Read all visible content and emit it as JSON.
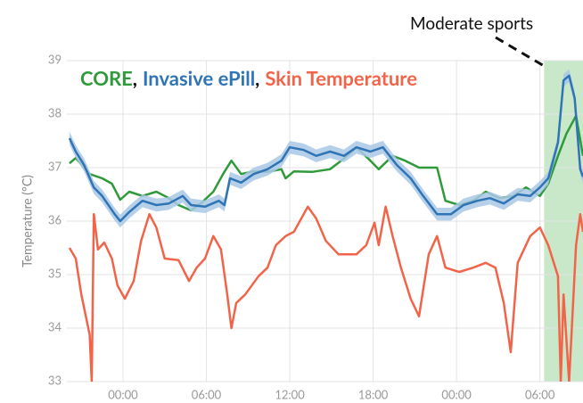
{
  "chart_data": {
    "type": "line",
    "ylabel": "Temperature (°C)",
    "legend_separator": ",",
    "xlim": [
      -4.04,
      33.1
    ],
    "ylim": [
      33,
      39
    ],
    "yticks": [
      33,
      34,
      35,
      36,
      37,
      38,
      39
    ],
    "xticks": [
      {
        "value": 0,
        "label": "00:00"
      },
      {
        "value": 6,
        "label": "06:00"
      },
      {
        "value": 12,
        "label": "12:00"
      },
      {
        "value": 18,
        "label": "18:00"
      },
      {
        "value": 24,
        "label": "00:00"
      },
      {
        "value": 30,
        "label": "06:00"
      }
    ],
    "grid": true,
    "shaded_region": {
      "x": [
        30.3,
        33.1
      ],
      "color": "#c9e8c9",
      "label": "Moderate sports"
    },
    "series": [
      {
        "name": "CORE",
        "color": "#2e9a3a",
        "x": [
          -3.85,
          -3.4,
          -2.4,
          -1.5,
          -0.8,
          -0.2,
          0.45,
          1.4,
          2.4,
          3.3,
          4,
          4.9,
          5.6,
          6.5,
          7.2,
          7.8,
          8.5,
          9.4,
          10.4,
          11.4,
          11.7,
          12.3,
          13.6,
          14.9,
          15.9,
          16.8,
          17.8,
          18.4,
          19.4,
          20.3,
          21.3,
          22.6,
          23.2,
          24.2,
          25.2,
          26.1,
          27.1,
          28.1,
          29,
          30,
          30.6,
          31.3,
          31.9,
          32.6,
          33.1
        ],
        "values": [
          37.08,
          37.18,
          36.88,
          36.8,
          36.7,
          36.4,
          36.55,
          36.47,
          36.55,
          36.43,
          36.3,
          36.2,
          36.33,
          36.55,
          36.88,
          37.13,
          36.88,
          36.93,
          36.92,
          36.97,
          36.8,
          36.93,
          36.92,
          36.97,
          37.17,
          37.38,
          37.13,
          36.97,
          37.22,
          37.13,
          37,
          37,
          36.38,
          36.3,
          36.38,
          36.55,
          36.43,
          36.47,
          36.63,
          36.47,
          36.7,
          37.22,
          37.63,
          37.97,
          37.22
        ]
      },
      {
        "name": "Invasive ePill",
        "color": "#2f74b5",
        "band_color": "#a9c8e6",
        "uncertainty": 0.12,
        "x": [
          -3.85,
          -3.4,
          -2.8,
          -2.1,
          -1.5,
          -0.6,
          -0.2,
          0.45,
          1.4,
          2.4,
          3.3,
          4.3,
          4.9,
          5.9,
          6.9,
          7.3,
          7.7,
          8.5,
          9.4,
          10.4,
          11.4,
          12,
          13,
          13.9,
          14.9,
          15.9,
          16.8,
          17.8,
          18.7,
          19.7,
          20.7,
          21.6,
          22.6,
          23.6,
          24.5,
          25.5,
          26.4,
          27.4,
          28.4,
          29.3,
          30,
          30.6,
          31.3,
          31.7,
          32.1,
          32.5,
          32.9,
          33.1
        ],
        "values": [
          37.55,
          37.3,
          37.05,
          36.63,
          36.47,
          36.13,
          36,
          36.17,
          36.38,
          36.3,
          36.33,
          36.47,
          36.3,
          36.27,
          36.38,
          36.3,
          36.8,
          36.72,
          36.88,
          36.97,
          37.13,
          37.38,
          37.33,
          37.22,
          37.3,
          37.22,
          37.38,
          37.3,
          37.38,
          37.05,
          36.8,
          36.47,
          36.13,
          36.13,
          36.3,
          36.38,
          36.43,
          36.33,
          36.5,
          36.47,
          36.63,
          36.8,
          37.47,
          38.63,
          38.72,
          38.3,
          36.97,
          36.83
        ]
      },
      {
        "name": "Skin Temperature",
        "color": "#f26449",
        "x": [
          -3.85,
          -3.4,
          -3,
          -2.4,
          -2.25,
          -2.1,
          -1.8,
          -1.35,
          -0.8,
          -0.4,
          0.13,
          0.77,
          1.3,
          1.9,
          2.4,
          3,
          4,
          4.75,
          5.3,
          5.9,
          6.5,
          7.05,
          7.5,
          7.8,
          8.15,
          8.8,
          9.75,
          10.4,
          11,
          11.7,
          12.3,
          13.3,
          13.9,
          14.6,
          15.5,
          16.8,
          17.5,
          18.1,
          18.4,
          18.9,
          19.4,
          20,
          20.7,
          21.3,
          22,
          22.6,
          23.2,
          24.2,
          25.2,
          26.1,
          26.8,
          27.4,
          27.9,
          28.4,
          29.3,
          30,
          30.6,
          31.3,
          31.5,
          31.7,
          32.1,
          32.6,
          32.9,
          33.1
        ],
        "values": [
          35.5,
          35.3,
          34.63,
          33.88,
          33,
          36.13,
          35.47,
          35.6,
          35.3,
          34.8,
          34.55,
          34.88,
          35.63,
          36.13,
          35.88,
          35.3,
          35.27,
          34.88,
          35.13,
          35.3,
          35.72,
          35.47,
          34.63,
          34,
          34.47,
          34.63,
          34.97,
          35.13,
          35.55,
          35.72,
          35.8,
          36.27,
          36.05,
          35.63,
          35.38,
          35.38,
          35.55,
          35.97,
          35.55,
          36.27,
          35.72,
          35.13,
          34.55,
          34.22,
          35.38,
          35.72,
          35.13,
          35.05,
          35.13,
          35.22,
          35.13,
          34.47,
          33.55,
          35.22,
          35.72,
          35.88,
          35.55,
          34.97,
          33,
          34.63,
          33,
          35.55,
          36.13,
          35.8
        ]
      }
    ]
  }
}
